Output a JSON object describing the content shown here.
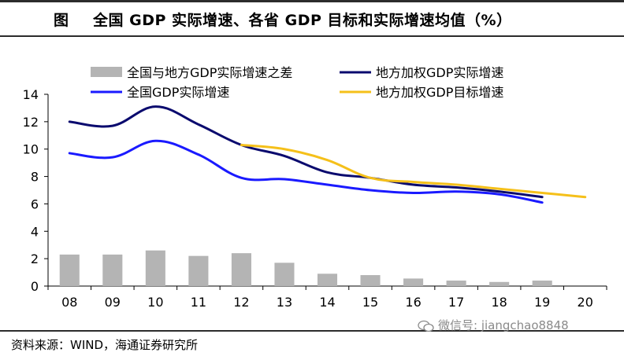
{
  "header": {
    "prefix": "图",
    "title": "全国 GDP 实际增速、各省 GDP 目标和实际增速均值（%）"
  },
  "source": "资料来源：WIND，海通证券研究所",
  "watermark": "微信号: jiangchao8848",
  "colors": {
    "gap_bar": "#b4b4b4",
    "weighted_actual": "#0a0a6e",
    "national": "#1a1aff",
    "weighted_target": "#f5c01a"
  },
  "chart_data": {
    "type": "bar+line",
    "title": "全国 GDP 实际增速、各省 GDP 目标和实际增速均值（%）",
    "categories": [
      "08",
      "09",
      "10",
      "11",
      "12",
      "13",
      "14",
      "15",
      "16",
      "17",
      "18",
      "19",
      "20"
    ],
    "ylim": [
      0,
      14
    ],
    "yticks": [
      0,
      2,
      4,
      6,
      8,
      10,
      12,
      14
    ],
    "legend_position": "top",
    "series": [
      {
        "name": "全国与地方GDP实际增速之差",
        "kind": "bar",
        "color_key": "gap_bar",
        "values": [
          2.3,
          2.3,
          2.6,
          2.2,
          2.4,
          1.7,
          0.9,
          0.8,
          0.55,
          0.4,
          0.3,
          0.4,
          null
        ]
      },
      {
        "name": "地方加权GDP实际增速",
        "kind": "line",
        "color_key": "weighted_actual",
        "values": [
          12.0,
          11.7,
          13.1,
          11.8,
          10.3,
          9.5,
          8.3,
          7.9,
          7.4,
          7.2,
          6.9,
          6.5,
          null
        ]
      },
      {
        "name": "全国GDP实际增速",
        "kind": "line",
        "color_key": "national",
        "values": [
          9.7,
          9.4,
          10.6,
          9.6,
          7.9,
          7.8,
          7.4,
          7.0,
          6.8,
          6.9,
          6.7,
          6.1,
          null
        ]
      },
      {
        "name": "地方加权GDP目标增速",
        "kind": "line",
        "color_key": "weighted_target",
        "values": [
          null,
          null,
          null,
          null,
          10.3,
          10.0,
          9.2,
          7.9,
          7.6,
          7.4,
          7.1,
          6.8,
          6.5
        ]
      }
    ]
  }
}
